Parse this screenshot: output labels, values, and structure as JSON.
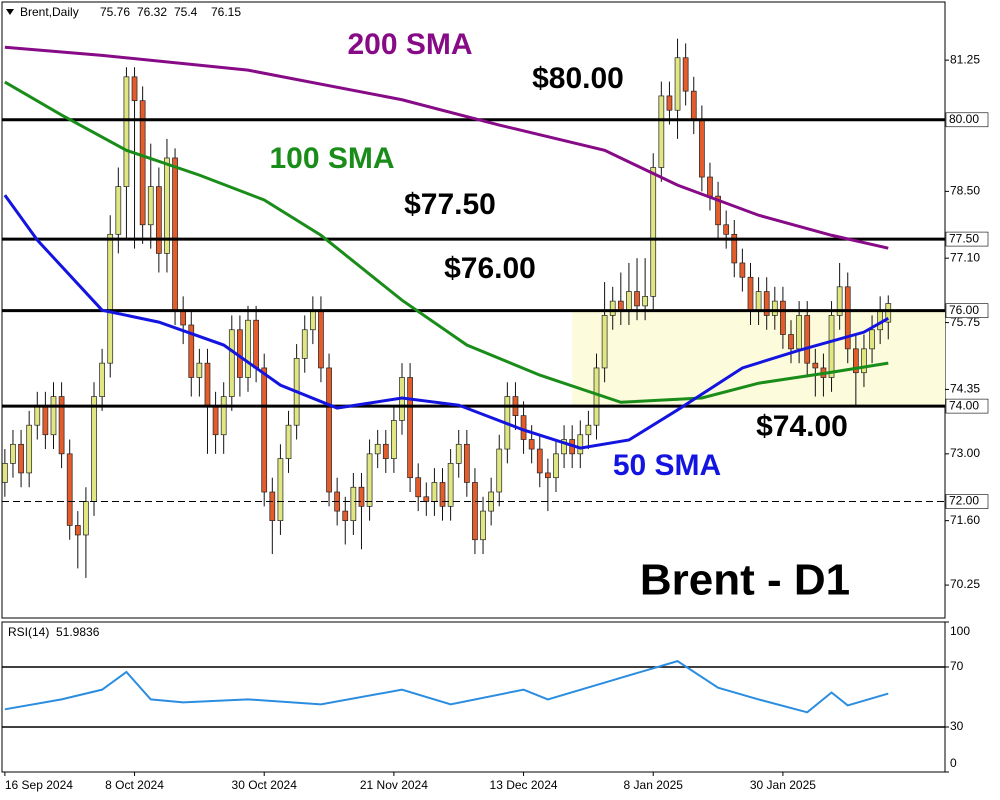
{
  "chart_data": {
    "type": "candlestick",
    "title": "Brent - D1",
    "header": "Brent,Daily",
    "up_color": "#dfe682",
    "down_color": "#e25c2c",
    "open": [
      72.4,
      72.8,
      73.2,
      72.6,
      73.6,
      74.0,
      73.4,
      74.2,
      73.0,
      71.5,
      71.3,
      72.0,
      74.2,
      74.9,
      77.6,
      78.6,
      80.9,
      80.4,
      77.8,
      78.6,
      77.2,
      79.2,
      76.0,
      75.7,
      74.6,
      74.9,
      74.0,
      73.4,
      74.2,
      75.6,
      74.6,
      75.8,
      74.8,
      72.2,
      71.6,
      72.9,
      73.6,
      75.0,
      75.6,
      76.0,
      74.8,
      72.2,
      71.8,
      71.6,
      72.3,
      71.9,
      73.0,
      73.2,
      72.9,
      73.7,
      74.6,
      72.5,
      72.1,
      72.0,
      72.4,
      71.9,
      72.8,
      73.2,
      72.4,
      71.2,
      71.8,
      72.2,
      73.1,
      74.2,
      73.8,
      73.3,
      73.1,
      72.6,
      72.5,
      73.0,
      73.3,
      73.0,
      73.4,
      73.6,
      74.8,
      75.9,
      76.2,
      76.0,
      76.4,
      76.1,
      76.3,
      79.0,
      80.5,
      80.2,
      81.3,
      80.6,
      80.0,
      78.8,
      78.4,
      77.8,
      77.6,
      77.0,
      76.7,
      76.0,
      76.4,
      75.9,
      76.2,
      75.5,
      75.2,
      75.9,
      74.9,
      74.8,
      74.6,
      75.9,
      76.5,
      75.2,
      74.7,
      75.2,
      75.6,
      75.76
    ],
    "high": [
      73.1,
      73.5,
      73.5,
      73.9,
      74.3,
      74.3,
      74.5,
      74.5,
      73.3,
      71.8,
      72.3,
      74.5,
      75.2,
      78.0,
      79.0,
      81.1,
      81.1,
      80.7,
      79.5,
      79.0,
      79.6,
      79.4,
      76.3,
      76.0,
      75.2,
      75.2,
      74.3,
      74.5,
      75.9,
      75.9,
      76.1,
      76.1,
      75.1,
      72.5,
      73.2,
      73.9,
      75.3,
      75.9,
      76.3,
      76.3,
      75.1,
      72.5,
      72.1,
      72.6,
      72.6,
      73.3,
      73.5,
      73.5,
      74.0,
      74.9,
      74.9,
      72.8,
      72.4,
      72.7,
      72.7,
      73.1,
      73.5,
      73.5,
      72.7,
      72.1,
      72.5,
      73.4,
      74.5,
      74.5,
      74.1,
      73.6,
      73.4,
      72.9,
      73.3,
      73.6,
      73.6,
      73.7,
      73.9,
      75.1,
      76.6,
      76.5,
      76.8,
      77.0,
      77.1,
      77.1,
      79.3,
      80.8,
      80.8,
      81.7,
      81.6,
      80.9,
      80.3,
      79.1,
      78.7,
      78.1,
      77.9,
      77.3,
      77.0,
      76.7,
      76.7,
      76.5,
      76.5,
      75.8,
      76.2,
      76.2,
      75.2,
      75.1,
      76.2,
      77.0,
      76.8,
      75.5,
      75.5,
      75.9,
      76.3,
      76.32
    ],
    "low": [
      72.1,
      72.5,
      72.3,
      72.3,
      73.3,
      73.1,
      73.1,
      72.7,
      71.2,
      70.6,
      70.4,
      71.7,
      73.9,
      74.6,
      77.2,
      77.5,
      77.3,
      77.4,
      77.3,
      76.8,
      76.8,
      75.7,
      75.3,
      74.2,
      74.2,
      73.0,
      73.0,
      73.0,
      73.9,
      74.2,
      74.3,
      74.5,
      71.9,
      70.9,
      71.3,
      72.6,
      73.3,
      74.7,
      75.3,
      74.5,
      71.9,
      71.5,
      71.1,
      71.3,
      71.0,
      71.6,
      72.7,
      72.6,
      72.6,
      73.4,
      72.2,
      71.8,
      71.7,
      71.7,
      71.6,
      71.6,
      72.5,
      72.1,
      70.9,
      70.9,
      71.5,
      71.9,
      72.8,
      73.5,
      73.0,
      72.8,
      72.3,
      71.8,
      72.2,
      72.7,
      72.7,
      72.7,
      73.1,
      73.3,
      74.5,
      75.6,
      75.7,
      75.7,
      75.8,
      75.8,
      76.0,
      78.7,
      79.9,
      79.6,
      80.3,
      79.7,
      78.5,
      78.1,
      77.5,
      77.3,
      76.7,
      76.4,
      75.7,
      75.7,
      75.6,
      75.6,
      75.2,
      74.9,
      74.9,
      74.6,
      74.2,
      74.2,
      74.3,
      75.6,
      74.9,
      74.0,
      74.4,
      74.9,
      75.3,
      75.4
    ],
    "close": [
      72.8,
      73.2,
      72.6,
      73.6,
      74.0,
      73.4,
      74.2,
      73.0,
      71.5,
      71.3,
      72.0,
      74.2,
      74.9,
      77.6,
      78.6,
      80.9,
      80.4,
      77.8,
      78.6,
      77.2,
      79.2,
      76.0,
      75.7,
      74.6,
      74.9,
      74.0,
      73.4,
      74.2,
      75.6,
      74.6,
      75.8,
      74.8,
      72.2,
      71.6,
      72.9,
      73.6,
      75.0,
      75.6,
      76.0,
      74.8,
      72.2,
      71.8,
      71.6,
      72.3,
      71.9,
      73.0,
      73.2,
      72.9,
      73.7,
      74.6,
      72.5,
      72.1,
      72.0,
      72.4,
      71.9,
      72.8,
      73.2,
      72.4,
      71.2,
      71.8,
      72.2,
      73.1,
      74.2,
      73.8,
      73.3,
      73.1,
      72.6,
      72.5,
      73.0,
      73.3,
      73.0,
      73.4,
      73.6,
      74.8,
      75.9,
      76.2,
      76.0,
      76.4,
      76.1,
      76.3,
      79.0,
      80.5,
      80.2,
      81.3,
      80.6,
      80.0,
      78.8,
      78.4,
      77.8,
      77.6,
      77.0,
      76.7,
      76.0,
      76.4,
      75.9,
      76.2,
      75.5,
      75.2,
      75.9,
      74.9,
      74.8,
      74.6,
      75.9,
      76.5,
      75.2,
      74.7,
      75.2,
      75.6,
      76.0,
      76.15
    ],
    "xlim": [
      -0.6,
      116
    ],
    "xticks": [
      {
        "value": 0,
        "label": "16 Sep 2024"
      },
      {
        "value": 16,
        "label": "8 Oct 2024"
      },
      {
        "value": 32,
        "label": "30 Oct 2024"
      },
      {
        "value": 48,
        "label": "21 Nov 2024"
      },
      {
        "value": 64,
        "label": "13 Dec 2024"
      },
      {
        "value": 80,
        "label": "8 Jan 2025"
      },
      {
        "value": 96,
        "label": "30 Jan 2025"
      }
    ],
    "ylim": [
      69.56,
      82.51
    ],
    "yticks": [
      81.25,
      {
        "value": 78.5,
        "label": "78.50"
      },
      {
        "value": 77.1,
        "label": "77.10"
      },
      75.75,
      74.35,
      {
        "value": 73,
        "label": "73.00"
      },
      {
        "value": 71.6,
        "label": "71.60"
      },
      70.25
    ],
    "levels": [
      {
        "value": 80,
        "label": "80.00",
        "annotation": "$80.00"
      },
      {
        "value": 77.5,
        "label": "77.50",
        "annotation": "$77.50"
      },
      {
        "value": 76,
        "label": "76.00",
        "annotation": "$76.00"
      },
      {
        "value": 74,
        "label": "74.00",
        "annotation": "$74.00"
      },
      {
        "value": 72,
        "label": "72.00",
        "dashed": true
      }
    ],
    "zone": {
      "from": 70,
      "ylim": [
        74,
        76
      ],
      "color": "#fcfbdc"
    },
    "series": [
      {
        "name": "200 SMA",
        "color": "#870a87",
        "x": [
          0,
          12,
          30,
          49,
          61,
          74,
          83,
          93,
          102,
          109
        ],
        "values": [
          81.52,
          81.35,
          81.04,
          80.42,
          79.89,
          79.36,
          78.63,
          78.0,
          77.58,
          77.31
        ]
      },
      {
        "name": "100 SMA",
        "color": "#198c19",
        "x": [
          0,
          7,
          15,
          24,
          32,
          39,
          49,
          57,
          66,
          76,
          86,
          93,
          102,
          109
        ],
        "values": [
          80.79,
          80.1,
          79.36,
          78.84,
          78.32,
          77.58,
          76.22,
          75.28,
          74.65,
          74.08,
          74.17,
          74.48,
          74.71,
          74.9
        ]
      },
      {
        "name": "50 SMA",
        "color": "#1414e0",
        "x": [
          0,
          4,
          12,
          19,
          27,
          34,
          41,
          49,
          56,
          64,
          71,
          77,
          83,
          91,
          98,
          106,
          109
        ],
        "values": [
          78.42,
          77.48,
          76.01,
          75.76,
          75.28,
          74.44,
          73.96,
          74.17,
          74.02,
          73.5,
          73.12,
          73.29,
          73.92,
          74.8,
          75.17,
          75.55,
          75.84
        ]
      }
    ],
    "rsi": {
      "label": "RSI(14)",
      "value": 51.9836,
      "color": "#2b8de0",
      "ylim": [
        0,
        100
      ],
      "yticks": [
        100,
        70,
        30,
        0
      ],
      "levels": [
        70,
        30
      ],
      "x": [
        0,
        7,
        12,
        15,
        18,
        22,
        30,
        39,
        49,
        55,
        64,
        67,
        76,
        83,
        88,
        93,
        99,
        102,
        104,
        109
      ],
      "values": [
        41.8,
        48.4,
        54.9,
        66.7,
        48.4,
        46.4,
        48.4,
        45.1,
        54.9,
        45.1,
        54.9,
        48.4,
        62.8,
        73.9,
        56.2,
        48.4,
        39.8,
        53.0,
        44.4,
        52.3
      ]
    }
  }
}
